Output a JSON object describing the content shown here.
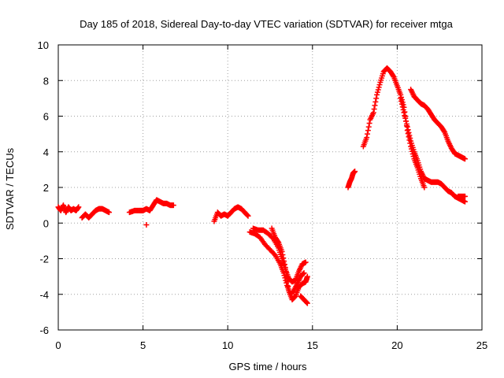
{
  "chart_data": {
    "type": "scatter",
    "title": "Day 185 of 2018, Sidereal Day-to-day VTEC variation (SDTVAR) for receiver mtga",
    "xlabel": "GPS time / hours",
    "ylabel": "SDTVAR / TECUs",
    "xlim": [
      0,
      25
    ],
    "ylim": [
      -6,
      10
    ],
    "xticks": [
      "0",
      "5",
      "10",
      "15",
      "20",
      "25"
    ],
    "yticks": [
      "-6",
      "-4",
      "-2",
      "0",
      "2",
      "4",
      "6",
      "8",
      "10"
    ],
    "grid": true,
    "marker": "plus",
    "series": [
      {
        "name": "seg1",
        "color": "#ff0000",
        "x": [
          0.0,
          0.15,
          0.3,
          0.45,
          0.6,
          0.75,
          0.9,
          1.05,
          1.2
        ],
        "y": [
          0.9,
          0.7,
          1.0,
          0.6,
          0.9,
          0.7,
          0.8,
          0.7,
          0.9
        ]
      },
      {
        "name": "seg2",
        "color": "#ff0000",
        "x": [
          1.4,
          1.6,
          1.8,
          2.0,
          2.2,
          2.4,
          2.6,
          2.8,
          3.0
        ],
        "y": [
          0.3,
          0.5,
          0.3,
          0.5,
          0.7,
          0.8,
          0.8,
          0.7,
          0.6
        ]
      },
      {
        "name": "seg3",
        "color": "#ff0000",
        "x": [
          4.2,
          4.5,
          4.8,
          5.0,
          5.2,
          5.4,
          5.6,
          5.8,
          6.0,
          6.2,
          6.4,
          6.6,
          6.8,
          5.2
        ],
        "y": [
          0.6,
          0.7,
          0.7,
          0.7,
          0.8,
          0.7,
          1.0,
          1.3,
          1.2,
          1.1,
          1.1,
          1.0,
          1.0,
          -0.1
        ]
      },
      {
        "name": "seg4",
        "color": "#ff0000",
        "x": [
          9.2,
          9.4,
          9.6,
          9.8,
          10.0,
          10.2,
          10.4,
          10.6,
          10.8,
          11.0,
          11.2
        ],
        "y": [
          0.1,
          0.6,
          0.4,
          0.5,
          0.4,
          0.6,
          0.8,
          0.9,
          0.8,
          0.6,
          0.4
        ]
      },
      {
        "name": "seg5",
        "color": "#ff0000",
        "x": [
          11.3,
          11.6,
          11.9,
          12.2,
          12.5,
          12.8,
          13.1,
          13.3,
          13.5,
          13.7,
          13.9,
          14.1,
          14.3,
          14.5
        ],
        "y": [
          -0.5,
          -0.6,
          -0.8,
          -1.2,
          -1.5,
          -1.8,
          -2.3,
          -2.8,
          -3.5,
          -4.0,
          -3.8,
          -3.4,
          -3.0,
          -2.8
        ]
      },
      {
        "name": "seg6",
        "color": "#ff0000",
        "x": [
          11.5,
          11.8,
          12.1,
          12.4,
          12.7,
          13.0,
          13.2,
          13.4,
          13.6,
          13.8,
          14.0,
          14.2,
          14.4,
          14.6
        ],
        "y": [
          -0.3,
          -0.4,
          -0.4,
          -0.6,
          -0.9,
          -1.4,
          -2.0,
          -2.6,
          -3.1,
          -3.3,
          -3.2,
          -2.7,
          -2.3,
          -2.2
        ]
      },
      {
        "name": "seg7",
        "color": "#ff0000",
        "x": [
          12.6,
          12.8,
          13.0,
          13.2,
          13.4,
          13.6,
          13.8,
          14.0,
          14.2,
          14.4,
          14.6,
          14.7
        ],
        "y": [
          -0.3,
          -0.8,
          -1.1,
          -1.6,
          -2.5,
          -3.8,
          -4.3,
          -4.1,
          -3.6,
          -3.4,
          -3.3,
          -3.0
        ]
      },
      {
        "name": "seg8",
        "color": "#ff0000",
        "x": [
          14.3,
          14.5,
          14.7
        ],
        "y": [
          -4.1,
          -4.3,
          -4.5
        ]
      },
      {
        "name": "seg9",
        "color": "#ff0000",
        "x": [
          17.1,
          17.2,
          17.3,
          17.4,
          17.5
        ],
        "y": [
          2.0,
          2.3,
          2.5,
          2.8,
          2.9
        ]
      },
      {
        "name": "seg10",
        "color": "#ff0000",
        "x": [
          18.0,
          18.2,
          18.4,
          18.6,
          18.8,
          19.0,
          19.2,
          19.4,
          19.6,
          19.8,
          20.0,
          20.2,
          20.4,
          20.6,
          20.8,
          21.0,
          21.2,
          21.4,
          21.6
        ],
        "y": [
          4.3,
          4.8,
          5.8,
          6.2,
          7.2,
          7.9,
          8.5,
          8.7,
          8.5,
          8.2,
          7.7,
          7.2,
          6.5,
          5.2,
          4.3,
          3.6,
          3.1,
          2.5,
          2.0
        ]
      },
      {
        "name": "seg11",
        "color": "#ff0000",
        "x": [
          20.2,
          20.4,
          20.6,
          20.8,
          21.0,
          21.2,
          21.4,
          21.6,
          21.8,
          22.0,
          22.2,
          22.4,
          22.6,
          22.8,
          23.0,
          23.2,
          23.4,
          23.6,
          23.8,
          24.0
        ],
        "y": [
          7.0,
          6.2,
          5.4,
          4.6,
          4.0,
          3.5,
          2.9,
          2.5,
          2.4,
          2.3,
          2.3,
          2.3,
          2.2,
          2.0,
          1.8,
          1.7,
          1.5,
          1.4,
          1.3,
          1.2
        ]
      },
      {
        "name": "seg12",
        "color": "#ff0000",
        "x": [
          20.8,
          21.0,
          21.2,
          21.4,
          21.6,
          21.8,
          22.0,
          22.2,
          22.4,
          22.6,
          22.8,
          23.0,
          23.2,
          23.4,
          23.6,
          23.8,
          24.0
        ],
        "y": [
          7.5,
          7.1,
          6.9,
          6.7,
          6.6,
          6.4,
          6.1,
          5.8,
          5.6,
          5.4,
          5.1,
          4.6,
          4.2,
          3.9,
          3.8,
          3.7,
          3.6
        ]
      },
      {
        "name": "seg13",
        "color": "#ff0000",
        "x": [
          23.6,
          23.8,
          24.0
        ],
        "y": [
          1.5,
          1.5,
          1.5
        ]
      }
    ]
  }
}
